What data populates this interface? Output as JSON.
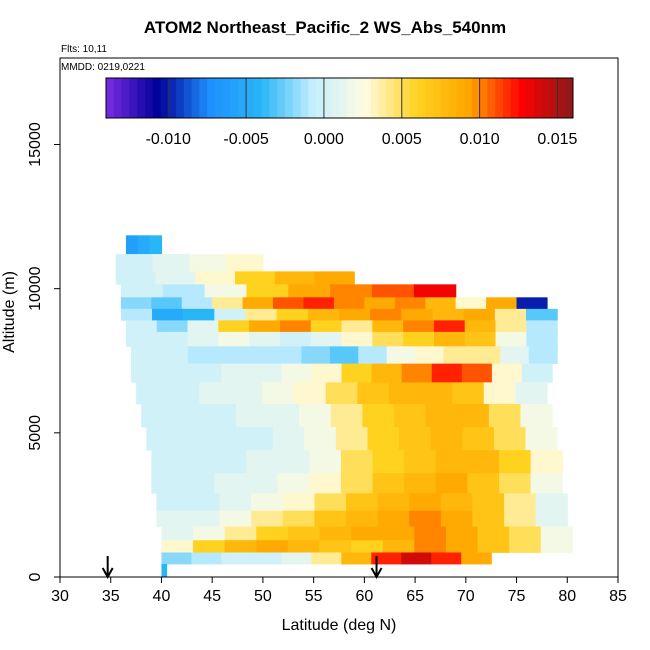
{
  "chart_data": {
    "type": "heatmap",
    "title": "ATOM2 Northeast_Pacific_2 WS_Abs_540nm",
    "note_flights": "Flts: 10,11",
    "note_dates": "MMDD: 0219,0221",
    "xlabel": "Latitude (deg N)",
    "ylabel": "Altitude (m)",
    "xlim": [
      30,
      85
    ],
    "ylim": [
      0,
      18000
    ],
    "x_ticks": [
      "30",
      "35",
      "40",
      "45",
      "50",
      "55",
      "60",
      "65",
      "70",
      "75",
      "80",
      "85"
    ],
    "y_ticks": [
      "0",
      "5000",
      "10000",
      "15000"
    ],
    "colorbar": {
      "range": [
        -0.014,
        0.016
      ],
      "ticks": [
        "-0.010",
        "-0.005",
        "0.000",
        "0.005",
        "0.010",
        "0.015"
      ],
      "colors": [
        "#7b2be2",
        "#000099",
        "#1e90ff",
        "#29b6f6",
        "#c6efff",
        "#fffbe0",
        "#ffd21f",
        "#ffa500",
        "#ff0000",
        "#8b1a1a"
      ]
    },
    "arrows_lat": [
      34.7,
      61.2
    ],
    "altitude_bins": [
      {
        "alt": 11600,
        "lat_min": 36.5,
        "lat_max": 40.0,
        "values": [
          -0.006,
          -0.005,
          -0.004
        ]
      },
      {
        "alt": 10800,
        "lat_min": 35.5,
        "lat_max": 50.0,
        "values": [
          0.0,
          0.001,
          0.002,
          0.003
        ]
      },
      {
        "alt": 10400,
        "lat_min": 35.5,
        "lat_max": 59.0,
        "values": [
          0.0,
          0.001,
          0.003,
          0.006,
          0.008,
          0.009
        ]
      },
      {
        "alt": 9900,
        "lat_min": 36.0,
        "lat_max": 69.0,
        "values": [
          0.0,
          -0.001,
          0.002,
          0.006,
          0.009,
          0.01,
          0.011,
          0.013
        ]
      },
      {
        "alt": 9500,
        "lat_min": 36.0,
        "lat_max": 78.0,
        "values": [
          -0.002,
          -0.003,
          -0.001,
          0.004,
          0.009,
          0.011,
          0.012,
          0.01,
          0.009,
          0.01,
          0.008,
          0.003,
          0.009,
          -0.01
        ]
      },
      {
        "alt": 9100,
        "lat_min": 36.0,
        "lat_max": 79.0,
        "values": [
          -0.001,
          -0.005,
          -0.004,
          0.0,
          0.004,
          0.006,
          0.008,
          0.009,
          0.01,
          0.009,
          0.008,
          0.009,
          0.004,
          -0.003
        ]
      },
      {
        "alt": 8700,
        "lat_min": 36.5,
        "lat_max": 79.0,
        "values": [
          0.0,
          -0.002,
          0.001,
          0.006,
          0.009,
          0.01,
          0.006,
          0.004,
          0.008,
          0.01,
          0.012,
          0.008,
          0.004,
          -0.001
        ]
      },
      {
        "alt": 8300,
        "lat_min": 36.5,
        "lat_max": 79.0,
        "values": [
          0.0,
          0.0,
          0.001,
          0.002,
          0.001,
          0.0,
          0.001,
          0.003,
          0.005,
          0.006,
          0.008,
          0.007,
          0.002,
          -0.001
        ]
      },
      {
        "alt": 7700,
        "lat_min": 37.0,
        "lat_max": 79.0,
        "values": [
          0.0,
          0.0,
          -0.001,
          -0.001,
          -0.001,
          -0.001,
          -0.002,
          -0.003,
          -0.001,
          0.002,
          0.003,
          0.004,
          0.004,
          0.001,
          -0.001
        ]
      },
      {
        "alt": 7100,
        "lat_min": 37.0,
        "lat_max": 78.5,
        "values": [
          0.0,
          0.0,
          0.0,
          0.001,
          0.001,
          0.002,
          0.003,
          0.006,
          0.008,
          0.01,
          0.012,
          0.011,
          0.003,
          0.0
        ]
      },
      {
        "alt": 6400,
        "lat_min": 37.5,
        "lat_max": 78.0,
        "values": [
          0.0,
          0.0,
          0.001,
          0.001,
          0.002,
          0.003,
          0.005,
          0.007,
          0.008,
          0.008,
          0.007,
          0.003,
          0.001
        ]
      },
      {
        "alt": 5600,
        "lat_min": 38.0,
        "lat_max": 78.5,
        "values": [
          0.0,
          0.0,
          0.0,
          0.001,
          0.001,
          0.002,
          0.004,
          0.006,
          0.007,
          0.008,
          0.008,
          0.005,
          0.002
        ]
      },
      {
        "alt": 4800,
        "lat_min": 38.5,
        "lat_max": 79.0,
        "values": [
          0.0,
          0.0,
          0.0,
          0.0,
          0.001,
          0.002,
          0.004,
          0.006,
          0.007,
          0.008,
          0.007,
          0.005,
          0.002
        ]
      },
      {
        "alt": 4000,
        "lat_min": 39.0,
        "lat_max": 79.5,
        "values": [
          0.0,
          0.0,
          0.0,
          0.001,
          0.001,
          0.002,
          0.005,
          0.006,
          0.007,
          0.008,
          0.008,
          0.006,
          0.003
        ]
      },
      {
        "alt": 3200,
        "lat_min": 39.0,
        "lat_max": 79.5,
        "values": [
          0.0,
          0.0,
          0.001,
          0.001,
          0.002,
          0.003,
          0.005,
          0.007,
          0.008,
          0.009,
          0.007,
          0.005,
          0.002
        ]
      },
      {
        "alt": 2600,
        "lat_min": 39.5,
        "lat_max": 80.0,
        "values": [
          0.0,
          0.0,
          0.001,
          0.002,
          0.003,
          0.005,
          0.007,
          0.008,
          0.009,
          0.008,
          0.007,
          0.004,
          0.001
        ]
      },
      {
        "alt": 2000,
        "lat_min": 39.5,
        "lat_max": 80.0,
        "values": [
          0.001,
          0.001,
          0.002,
          0.004,
          0.005,
          0.007,
          0.008,
          0.009,
          0.01,
          0.009,
          0.007,
          0.004,
          0.001
        ]
      },
      {
        "alt": 1500,
        "lat_min": 40.0,
        "lat_max": 80.5,
        "values": [
          0.001,
          0.002,
          0.004,
          0.006,
          0.007,
          0.008,
          0.009,
          0.009,
          0.01,
          0.009,
          0.007,
          0.005,
          0.002
        ]
      },
      {
        "alt": 1050,
        "lat_min": 40.0,
        "lat_max": 80.5,
        "values": [
          0.003,
          0.006,
          0.008,
          0.009,
          0.008,
          0.007,
          0.006,
          0.008,
          0.01,
          0.009,
          0.007,
          0.005,
          0.002
        ]
      },
      {
        "alt": 650,
        "lat_min": 40.0,
        "lat_max": 72.5,
        "values": [
          -0.002,
          -0.001,
          0.0,
          0.0,
          0.001,
          0.004,
          0.008,
          0.012,
          0.014,
          0.012,
          0.009
        ]
      },
      {
        "alt": 250,
        "lat_min": 40.0,
        "lat_max": 40.5,
        "values": [
          -0.004
        ]
      }
    ]
  }
}
